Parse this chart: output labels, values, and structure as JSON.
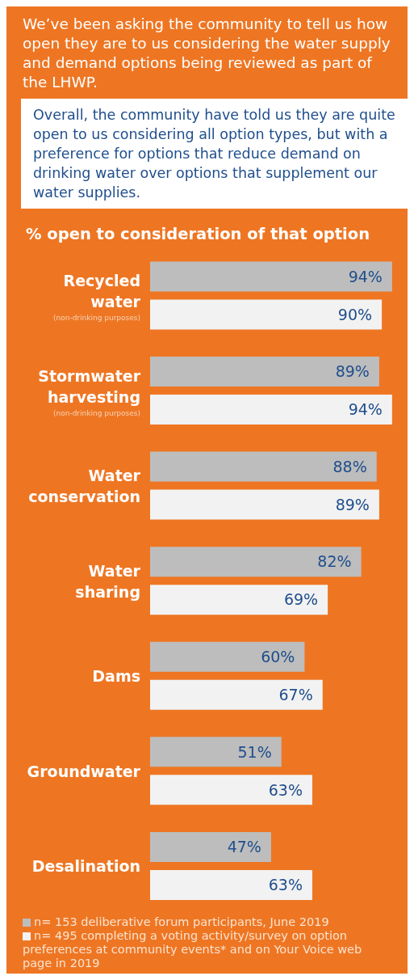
{
  "chart_data": {
    "type": "bar",
    "orientation": "horizontal",
    "title": "We’ve been asking the community to tell us how open they are to us considering the water supply and demand options being reviewed as part of the LHWP.",
    "subtitle": "Overall, the community have told us they are quite open to us considering all option types, but with a preference for options that reduce demand on drinking water over options that supplement our water supplies.",
    "xlabel": "% open to consideration of that option",
    "categories": [
      "Recycled\nwater\n(non-drinking purposes)",
      "Stormwater\nharvesting\n(non-drinking purposes)",
      "Water\nconservation",
      "Water\nsharing",
      "Dams",
      "Groundwater",
      "Desalination"
    ],
    "series": [
      {
        "name": "n= 153 deliberative forum participants, June 2019",
        "color": "#bdbdbd",
        "values": [
          94,
          89,
          88,
          82,
          60,
          51,
          47
        ],
        "value_labels": [
          "94%",
          "89%",
          "88%",
          "82%",
          "60%",
          "51%",
          "47%"
        ]
      },
      {
        "name": "n= 495 completing a voting activity/survey on option preferences at community events* and on Your Voice web page in 2019",
        "color": "#f2f2f2",
        "values": [
          90,
          94,
          89,
          69,
          67,
          63,
          63
        ],
        "value_labels": [
          "90%",
          "94%",
          "89%",
          "69%",
          "67%",
          "63%",
          "63%"
        ]
      }
    ],
    "xlim": [
      0,
      100
    ],
    "legend": "bottom"
  }
}
